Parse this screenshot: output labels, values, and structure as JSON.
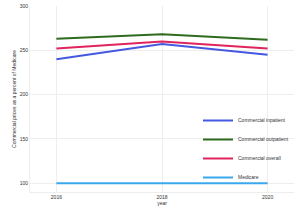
{
  "chart_data": {
    "type": "line",
    "x": [
      2016,
      2018,
      2020
    ],
    "xlim": [
      2015.5,
      2020.5
    ],
    "xticks": [
      2016,
      2018,
      2020
    ],
    "x_label": "year",
    "y_label": "Commercial prices as a percent of Medicare",
    "ylim": [
      90,
      300
    ],
    "yticks": [
      100,
      150,
      200,
      250,
      300
    ],
    "grid": true,
    "legend": "bottom right",
    "series": [
      {
        "name": "Commercial inpatient",
        "color": "#4459e0",
        "values": [
          240,
          257,
          245
        ]
      },
      {
        "name": "Commercial outpatient",
        "color": "#2e6b1e",
        "values": [
          263,
          268,
          262
        ]
      },
      {
        "name": "Commercial overall",
        "color": "#e0245e",
        "values": [
          252,
          260,
          252
        ]
      },
      {
        "name": "Medicare",
        "color": "#3aa8ec",
        "values": [
          100,
          100,
          100
        ]
      }
    ]
  }
}
